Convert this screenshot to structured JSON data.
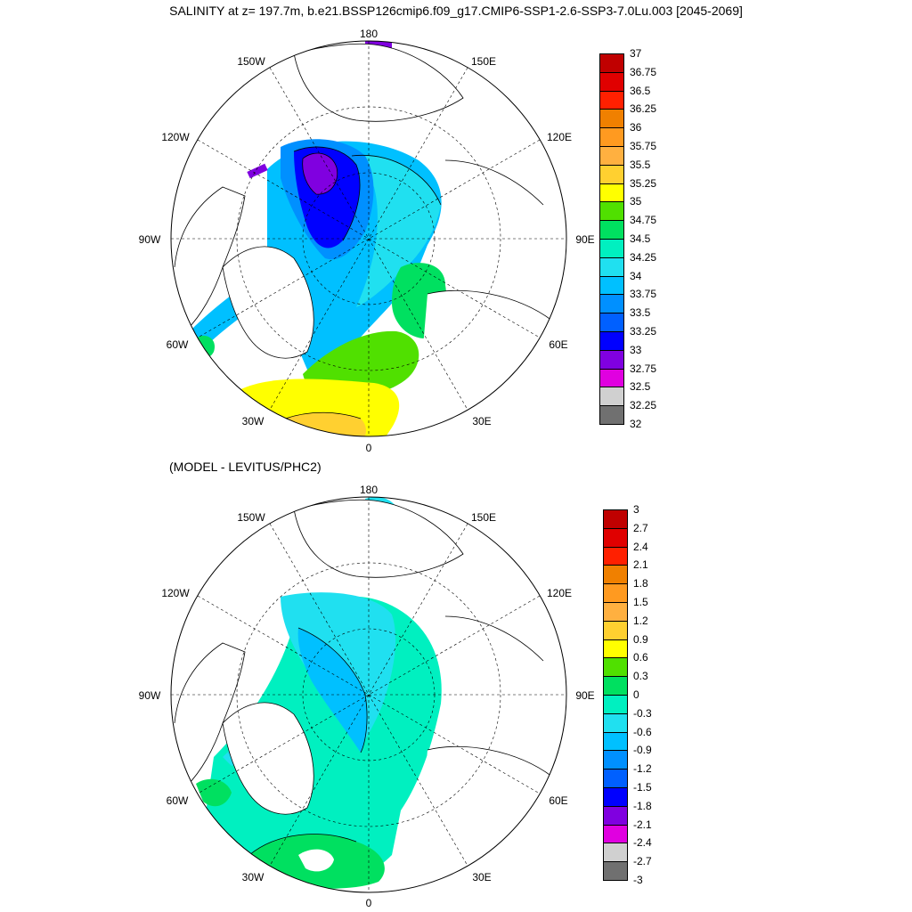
{
  "title": "SALINITY at z= 197.7m, b.e21.BSSP126cmip6.f09_g17.CMIP6-SSP1-2.6-SSP3-7.0Lu.003 [2045-2069]",
  "subtitle": "(MODEL - LEVITUS/PHC2)",
  "map_labels": {
    "lon_180": "180",
    "lon_0": "0",
    "lon_150W": "150W",
    "lon_150E": "150E",
    "lon_120W": "120W",
    "lon_120E": "120E",
    "lon_90W": "90W",
    "lon_90E": "90E",
    "lon_60W": "60W",
    "lon_60E": "60E",
    "lon_30W": "30W",
    "lon_30E": "30E"
  },
  "colorbar_top": {
    "ticks": [
      "37",
      "36.75",
      "36.5",
      "36.25",
      "36",
      "35.75",
      "35.5",
      "35.25",
      "35",
      "34.75",
      "34.5",
      "34.25",
      "34",
      "33.75",
      "33.5",
      "33.25",
      "33",
      "32.75",
      "32.5",
      "32.25",
      "32"
    ],
    "colors": [
      "#c00000",
      "#e00000",
      "#ff2000",
      "#f08000",
      "#ff9a20",
      "#ffb040",
      "#ffd030",
      "#ffff00",
      "#50e000",
      "#00e060",
      "#00f0c0",
      "#20e0f0",
      "#00c0ff",
      "#0090ff",
      "#0060ff",
      "#0000ff",
      "#8000e0",
      "#e000e0",
      "#d0d0d0",
      "#707070"
    ]
  },
  "colorbar_bottom": {
    "ticks": [
      "3",
      "2.7",
      "2.4",
      "2.1",
      "1.8",
      "1.5",
      "1.2",
      "0.9",
      "0.6",
      "0.3",
      "0",
      "-0.3",
      "-0.6",
      "-0.9",
      "-1.2",
      "-1.5",
      "-1.8",
      "-2.1",
      "-2.4",
      "-2.7",
      "-3"
    ],
    "colors": [
      "#c00000",
      "#e00000",
      "#ff2000",
      "#f08000",
      "#ff9a20",
      "#ffb040",
      "#ffd030",
      "#ffff00",
      "#50e000",
      "#00e060",
      "#00f0c0",
      "#20e0f0",
      "#00c0ff",
      "#0090ff",
      "#0060ff",
      "#0000ff",
      "#8000e0",
      "#e000e0",
      "#d0d0d0",
      "#707070"
    ]
  },
  "colors": {
    "land": "#ffffff",
    "coast": "#000000",
    "grid": "#000000"
  }
}
